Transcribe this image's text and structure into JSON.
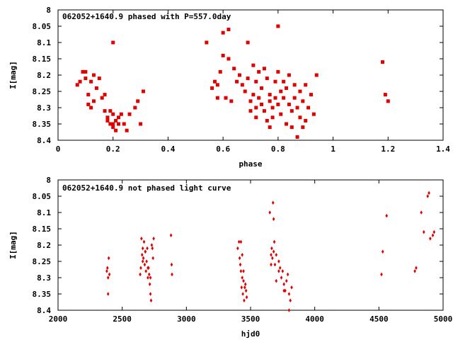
{
  "colors": {
    "points": "#e00000",
    "axes": "#000000",
    "background": "#ffffff"
  },
  "chart_data": [
    {
      "type": "scatter",
      "title": "062052+1640.9 phased with P=557.0day",
      "xlabel": "phase",
      "ylabel": "I[mag]",
      "xlim": [
        0,
        1.4
      ],
      "ylim": [
        8.4,
        8.0
      ],
      "y_inverted": true,
      "xticks": [
        "0",
        "0.2",
        "0.4",
        "0.6",
        "0.8",
        "1",
        "1.2",
        "1.4"
      ],
      "yticks": [
        "8",
        "8.05",
        "8.1",
        "8.15",
        "8.2",
        "8.25",
        "8.3",
        "8.35",
        "8.4"
      ],
      "grid": false,
      "marker": "filled-square",
      "series": [
        {
          "x": [
            0.07,
            0.08,
            0.09,
            0.1,
            0.1,
            0.11,
            0.11,
            0.12,
            0.12,
            0.13,
            0.13,
            0.14,
            0.15,
            0.16,
            0.17,
            0.17,
            0.18,
            0.18,
            0.19,
            0.19,
            0.2,
            0.2,
            0.2,
            0.21,
            0.21,
            0.22,
            0.22,
            0.23,
            0.24,
            0.25,
            0.26,
            0.28,
            0.29,
            0.3,
            0.31,
            0.2,
            0.54,
            0.56,
            0.57,
            0.58,
            0.58,
            0.59,
            0.6,
            0.6,
            0.61,
            0.62,
            0.62,
            0.63,
            0.64,
            0.65,
            0.66,
            0.67,
            0.68,
            0.69,
            0.7,
            0.7,
            0.71,
            0.71,
            0.72,
            0.72,
            0.73,
            0.73,
            0.74,
            0.74,
            0.75,
            0.75,
            0.76,
            0.76,
            0.77,
            0.77,
            0.78,
            0.78,
            0.79,
            0.79,
            0.8,
            0.8,
            0.8,
            0.81,
            0.81,
            0.82,
            0.82,
            0.83,
            0.83,
            0.84,
            0.84,
            0.85,
            0.85,
            0.86,
            0.86,
            0.87,
            0.87,
            0.88,
            0.88,
            0.89,
            0.89,
            0.9,
            0.9,
            0.91,
            0.92,
            0.93,
            0.94,
            0.69,
            0.72,
            0.77,
            1.18,
            1.19,
            1.2
          ],
          "y": [
            8.23,
            8.22,
            8.19,
            8.21,
            8.19,
            8.29,
            8.26,
            8.3,
            8.22,
            8.28,
            8.2,
            8.24,
            8.21,
            8.27,
            8.26,
            8.31,
            8.33,
            8.34,
            8.35,
            8.31,
            8.32,
            8.35,
            8.36,
            8.37,
            8.34,
            8.33,
            8.35,
            8.32,
            8.35,
            8.37,
            8.32,
            8.3,
            8.28,
            8.35,
            8.25,
            8.1,
            8.1,
            8.24,
            8.22,
            8.23,
            8.27,
            8.19,
            8.07,
            8.14,
            8.27,
            8.15,
            8.06,
            8.28,
            8.18,
            8.22,
            8.2,
            8.23,
            8.25,
            8.21,
            8.28,
            8.31,
            8.26,
            8.17,
            8.22,
            8.3,
            8.27,
            8.19,
            8.24,
            8.29,
            8.31,
            8.18,
            8.34,
            8.21,
            8.26,
            8.28,
            8.3,
            8.33,
            8.22,
            8.27,
            8.05,
            8.19,
            8.29,
            8.25,
            8.32,
            8.22,
            8.27,
            8.35,
            8.24,
            8.29,
            8.2,
            8.31,
            8.36,
            8.23,
            8.27,
            8.39,
            8.3,
            8.25,
            8.33,
            8.28,
            8.36,
            8.23,
            8.34,
            8.3,
            8.26,
            8.32,
            8.2,
            8.1,
            8.33,
            8.36,
            8.16,
            8.26,
            8.28
          ]
        }
      ]
    },
    {
      "type": "scatter",
      "title": "062052+1640.9 not phased light curve",
      "xlabel": "hjd0",
      "ylabel": "I[mag]",
      "xlim": [
        2000,
        5000
      ],
      "ylim": [
        8.4,
        8.0
      ],
      "y_inverted": true,
      "xticks": [
        "2000",
        "2500",
        "3000",
        "3500",
        "4000",
        "4500",
        "5000"
      ],
      "yticks": [
        "8",
        "8.05",
        "8.1",
        "8.15",
        "8.2",
        "8.25",
        "8.3",
        "8.35",
        "8.4"
      ],
      "grid": false,
      "marker": "small-diamond",
      "series": [
        {
          "x": [
            2380,
            2385,
            2390,
            2395,
            2400,
            2390,
            2640,
            2645,
            2650,
            2655,
            2660,
            2665,
            2670,
            2675,
            2680,
            2685,
            2690,
            2695,
            2700,
            2705,
            2710,
            2715,
            2720,
            2725,
            2730,
            2740,
            2745,
            2660,
            2680,
            2700,
            2720,
            2735,
            2880,
            2885,
            2888,
            3400,
            3410,
            3415,
            3420,
            3425,
            3430,
            3435,
            3440,
            3445,
            3450,
            3455,
            3460,
            3465,
            3470,
            3425,
            3445,
            3435,
            3650,
            3660,
            3665,
            3670,
            3675,
            3680,
            3685,
            3690,
            3660,
            3680,
            3700,
            3720,
            3730,
            3740,
            3750,
            3760,
            3770,
            3780,
            3790,
            3800,
            3810,
            3820,
            3700,
            3720,
            3760,
            3800,
            4520,
            4530,
            4560,
            4780,
            4790,
            4830,
            4850,
            4880,
            4890,
            4900,
            4920,
            4930
          ],
          "y": [
            8.28,
            8.27,
            8.3,
            8.24,
            8.29,
            8.35,
            8.29,
            8.27,
            8.18,
            8.23,
            8.21,
            8.24,
            8.19,
            8.26,
            8.22,
            8.28,
            8.25,
            8.21,
            8.3,
            8.27,
            8.29,
            8.32,
            8.35,
            8.37,
            8.2,
            8.24,
            8.18,
            8.25,
            8.22,
            8.27,
            8.3,
            8.21,
            8.17,
            8.26,
            8.29,
            8.21,
            8.19,
            8.24,
            8.26,
            8.28,
            8.33,
            8.3,
            8.35,
            8.31,
            8.37,
            8.33,
            8.32,
            8.34,
            8.36,
            8.19,
            8.28,
            8.23,
            8.1,
            8.23,
            8.21,
            8.24,
            8.07,
            8.12,
            8.19,
            8.26,
            8.26,
            8.22,
            8.23,
            8.25,
            8.27,
            8.3,
            8.28,
            8.32,
            8.34,
            8.31,
            8.29,
            8.35,
            8.37,
            8.33,
            8.31,
            8.28,
            8.34,
            8.4,
            8.29,
            8.22,
            8.11,
            8.28,
            8.27,
            8.1,
            8.16,
            8.05,
            8.04,
            8.18,
            8.17,
            8.16
          ]
        }
      ]
    }
  ]
}
